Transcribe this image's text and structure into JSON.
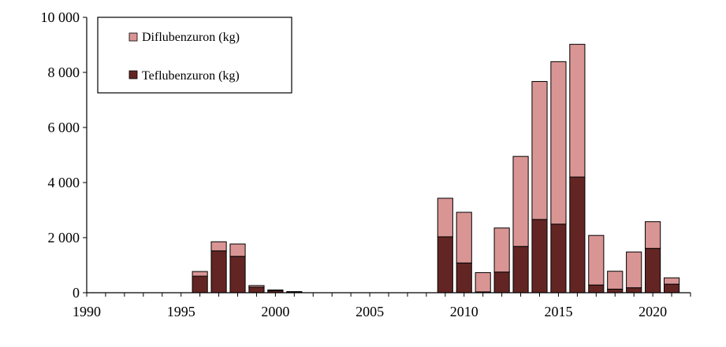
{
  "chart_data": {
    "type": "bar",
    "stacked": true,
    "x": [
      1996,
      1997,
      1998,
      1999,
      2000,
      2001,
      2009,
      2010,
      2011,
      2012,
      2013,
      2014,
      2015,
      2016,
      2017,
      2018,
      2019,
      2020,
      2021
    ],
    "series": [
      {
        "name": "Teflubenzuron (kg)",
        "color": "#632523",
        "values": [
          600,
          1520,
          1320,
          200,
          70,
          20,
          2030,
          1080,
          30,
          750,
          1680,
          2660,
          2490,
          4200,
          280,
          130,
          180,
          1610,
          310
        ]
      },
      {
        "name": "Diflubenzuron (kg)",
        "color": "#d99594",
        "values": [
          170,
          330,
          450,
          60,
          30,
          20,
          1400,
          1840,
          700,
          1600,
          3270,
          5010,
          5900,
          4820,
          1800,
          650,
          1300,
          970,
          230
        ]
      }
    ],
    "xlim": [
      1990,
      2022
    ],
    "xticks": [
      "1990",
      "1995",
      "2000",
      "2005",
      "2010",
      "2015",
      "2020"
    ],
    "ylim": [
      0,
      10000
    ],
    "yticks": [
      "0",
      "2 000",
      "4 000",
      "6 000",
      "8 000",
      "10 000"
    ],
    "legend": {
      "position": "top-left",
      "entries": [
        "Diflubenzuron (kg)",
        "Teflubenzuron (kg)"
      ]
    },
    "grid": false
  }
}
